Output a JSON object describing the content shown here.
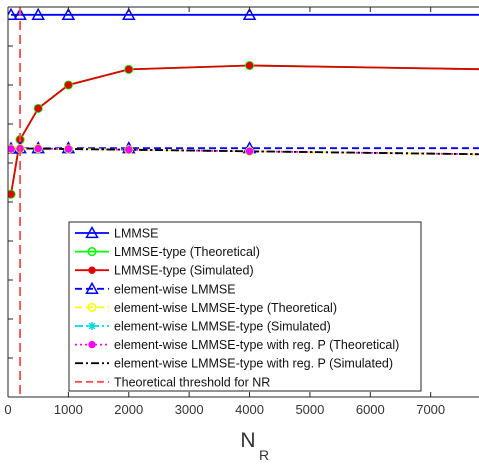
{
  "chart_data": {
    "type": "line",
    "xlabel_main": "N",
    "xlabel_sub": "R",
    "xlim": [
      0,
      7800
    ],
    "ylim": [
      0,
      1
    ],
    "xticks": [
      0,
      1000,
      2000,
      3000,
      4000,
      5000,
      6000,
      7000
    ],
    "xtick_labels": [
      "0",
      "1000",
      "2000",
      "3000",
      "4000",
      "5000",
      "6000",
      "7000"
    ],
    "yticks": [
      0.0,
      0.1,
      0.2,
      0.3,
      0.4,
      0.5,
      0.6,
      0.7,
      0.8,
      0.9,
      1.0
    ],
    "grid": false,
    "legend_position": "bottom-center",
    "x": [
      50,
      200,
      500,
      1000,
      2000,
      4000,
      8000
    ],
    "series": [
      {
        "name": "LMMSE",
        "color": "#0000ff",
        "dash": "solid",
        "marker": "triangle",
        "values": [
          0.98,
          0.98,
          0.98,
          0.98,
          0.98,
          0.98,
          0.98
        ]
      },
      {
        "name": "LMMSE-type (Theoretical)",
        "color": "#00ff00",
        "dash": "solid",
        "marker": "circle",
        "values": [
          0.52,
          0.66,
          0.74,
          0.8,
          0.84,
          0.85,
          0.84
        ]
      },
      {
        "name": "LMMSE-type (Simulated)",
        "color": "#e10000",
        "dash": "solid",
        "marker": "dot",
        "values": [
          0.52,
          0.66,
          0.74,
          0.8,
          0.84,
          0.85,
          0.84
        ]
      },
      {
        "name": "element-wise LMMSE",
        "color": "#0000ff",
        "dash": "dashed",
        "marker": "triangle",
        "values": [
          0.637,
          0.638,
          0.638,
          0.638,
          0.638,
          0.638,
          0.638
        ]
      },
      {
        "name": "element-wise LMMSE-type (Theoretical)",
        "color": "#ffff00",
        "dash": "dashed",
        "marker": "circle",
        "values": [
          0.636,
          0.637,
          0.637,
          0.636,
          0.634,
          0.63,
          0.622
        ]
      },
      {
        "name": "element-wise LMMSE-type (Simulated)",
        "color": "#00d8e0",
        "dash": "dashdot",
        "marker": "star",
        "values": [
          0.636,
          0.637,
          0.637,
          0.636,
          0.634,
          0.63,
          0.622
        ]
      },
      {
        "name": "element-wise LMMSE-type with reg. P (Theoretical)",
        "color": "#ff00ff",
        "dash": "dotted",
        "marker": "dot",
        "values": [
          0.636,
          0.637,
          0.637,
          0.636,
          0.634,
          0.63,
          0.622
        ]
      },
      {
        "name": "element-wise LMMSE-type with reg. P (Simulated)",
        "color": "#000000",
        "dash": "dashdot",
        "marker": "none",
        "values": [
          0.636,
          0.637,
          0.637,
          0.636,
          0.634,
          0.63,
          0.622
        ]
      }
    ],
    "threshold": {
      "name": "Theoretical threshold for NR",
      "x": 200,
      "color": "#ff4d4d",
      "dash": "dashed"
    }
  }
}
